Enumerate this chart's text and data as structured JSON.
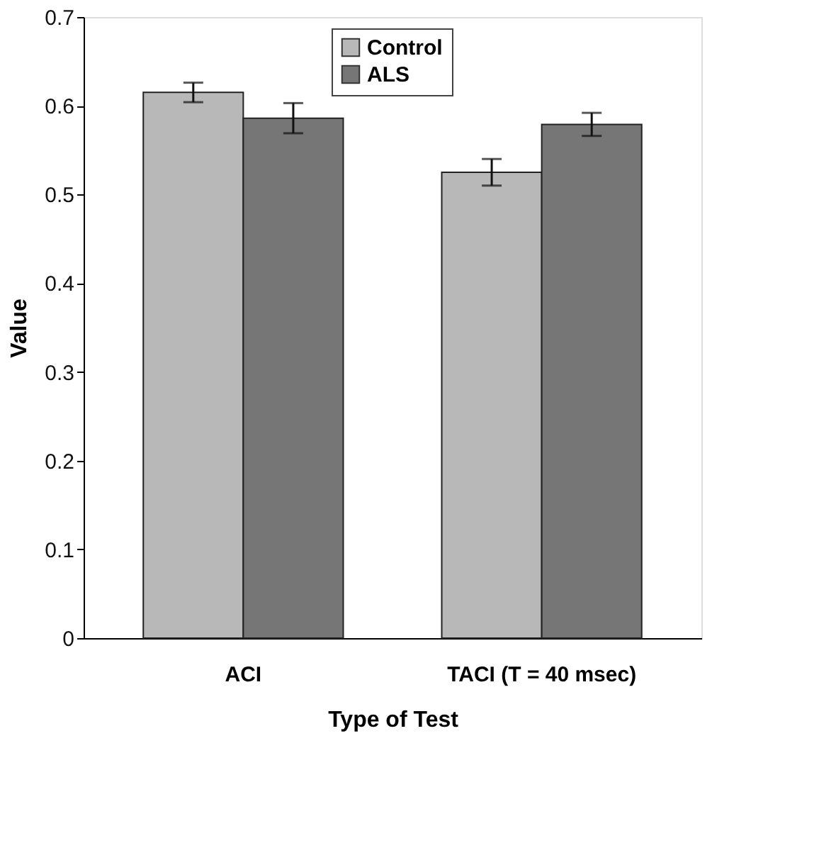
{
  "chart_data": {
    "type": "bar",
    "xlabel": "Type of Test",
    "ylabel": "Value",
    "categories": [
      "ACI",
      "TACI (T = 40 msec)"
    ],
    "series": [
      {
        "name": "Control",
        "color": "#b8b8b8",
        "values": [
          0.615,
          0.525
        ],
        "errors": [
          0.011,
          0.015
        ]
      },
      {
        "name": "ALS",
        "color": "#767676",
        "values": [
          0.586,
          0.579
        ],
        "errors": [
          0.017,
          0.013
        ]
      }
    ],
    "ylim": [
      0,
      0.7
    ],
    "yticks": [
      0,
      0.1,
      0.2,
      0.3,
      0.4,
      0.5,
      0.6,
      0.7
    ],
    "grid": false,
    "legend": "top"
  }
}
